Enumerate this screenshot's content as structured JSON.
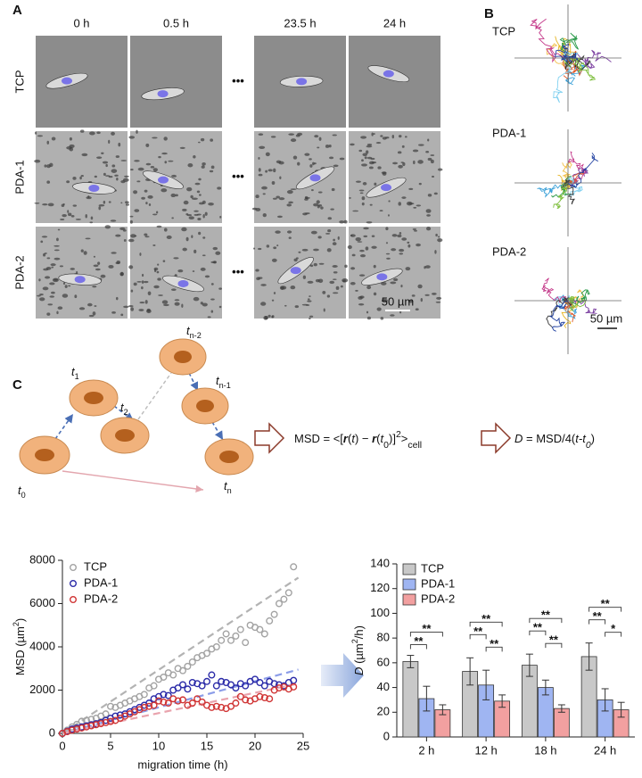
{
  "panel_a": {
    "label": "A",
    "columns": [
      "0 h",
      "0.5 h",
      "23.5 h",
      "24 h"
    ],
    "rows": [
      "TCP",
      "PDA-1",
      "PDA-2"
    ],
    "ellipsis": "•••",
    "scale_bar": "50 µm"
  },
  "panel_b": {
    "label": "B",
    "rows": [
      "TCP",
      "PDA-1",
      "PDA-2"
    ],
    "scale_bar": "50 µm"
  },
  "panel_c": {
    "label": "C",
    "time_points": [
      [
        {
          "text": "t",
          "style": "italic"
        },
        {
          "text": "0",
          "style": "sub"
        }
      ],
      [
        {
          "text": "t",
          "style": "italic"
        },
        {
          "text": "1",
          "style": "sub"
        }
      ],
      [
        {
          "text": "t",
          "style": "italic"
        },
        {
          "text": "2",
          "style": "sub"
        }
      ],
      [
        {
          "text": "t",
          "style": "italic"
        },
        {
          "text": "n-2",
          "style": "sub"
        }
      ],
      [
        {
          "text": "t",
          "style": "italic"
        },
        {
          "text": "n-1",
          "style": "sub"
        }
      ],
      [
        {
          "text": "t",
          "style": "italic"
        },
        {
          "text": "n",
          "style": "sub"
        }
      ]
    ],
    "msd_formula": [
      {
        "text": "MSD = <["
      },
      {
        "text": "r",
        "style": "bold italic"
      },
      {
        "text": "("
      },
      {
        "text": "t",
        "style": "italic"
      },
      {
        "text": ") − "
      },
      {
        "text": "r",
        "style": "bold italic"
      },
      {
        "text": "("
      },
      {
        "text": "t",
        "style": "italic"
      },
      {
        "text": "0",
        "style": "sub"
      },
      {
        "text": ")]"
      },
      {
        "text": "2",
        "style": "sup"
      },
      {
        "text": ">"
      },
      {
        "text": "cell",
        "style": "sub"
      }
    ],
    "d_formula": [
      {
        "text": "D",
        "style": "italic"
      },
      {
        "text": " = MSD/4("
      },
      {
        "text": "t-t",
        "style": "italic"
      },
      {
        "text": "0",
        "style": "italic sub"
      },
      {
        "text": ")"
      }
    ]
  },
  "chart_data": [
    {
      "type": "scatter",
      "x_label": "migration time (h)",
      "y_label": [
        {
          "text": "MSD (µm"
        },
        {
          "text": "2",
          "style": "sup"
        },
        {
          "text": ")"
        }
      ],
      "x": [
        0,
        0.5,
        1,
        1.5,
        2,
        2.5,
        3,
        3.5,
        4,
        4.5,
        5,
        5.5,
        6,
        6.5,
        7,
        7.5,
        8,
        8.5,
        9,
        9.5,
        10,
        10.5,
        11,
        11.5,
        12,
        12.5,
        13,
        13.5,
        14,
        14.5,
        15,
        15.5,
        16,
        16.5,
        17,
        17.5,
        18,
        18.5,
        19,
        19.5,
        20,
        20.5,
        21,
        21.5,
        22,
        22.5,
        23,
        23.5,
        24
      ],
      "series": [
        {
          "name": "TCP",
          "color": "#a3a3a3",
          "values": [
            0,
            150,
            300,
            420,
            560,
            600,
            650,
            700,
            800,
            900,
            1250,
            1200,
            1300,
            1400,
            1500,
            1600,
            1700,
            1800,
            2100,
            2200,
            2500,
            2600,
            2800,
            2700,
            3000,
            2900,
            3100,
            3300,
            3500,
            3600,
            3700,
            3900,
            4000,
            4300,
            4600,
            4300,
            4500,
            4800,
            4200,
            5000,
            4900,
            4800,
            4600,
            5200,
            5500,
            6000,
            6200,
            6500,
            7700
          ],
          "fit": {
            "x": [
              0,
              24.5
            ],
            "values": [
              0,
              7200
            ],
            "color": "#b3b3b3"
          }
        },
        {
          "name": "PDA-1",
          "color": "#2b2ba8",
          "values": [
            0,
            100,
            200,
            250,
            300,
            350,
            400,
            450,
            500,
            600,
            700,
            800,
            850,
            900,
            1000,
            1100,
            1200,
            1300,
            1400,
            1600,
            1700,
            1800,
            1750,
            2000,
            2100,
            2250,
            2050,
            2350,
            2300,
            2200,
            2400,
            2700,
            2200,
            2400,
            2350,
            2250,
            2100,
            2300,
            2200,
            2400,
            2500,
            2350,
            2200,
            2400,
            2300,
            2250,
            2200,
            2350,
            2450
          ],
          "fit": {
            "x": [
              0,
              24.5
            ],
            "values": [
              0,
              2950
            ],
            "color": "#8c9de8"
          }
        },
        {
          "name": "PDA-2",
          "color": "#d03535",
          "values": [
            0,
            80,
            150,
            200,
            250,
            300,
            350,
            400,
            450,
            500,
            550,
            600,
            700,
            800,
            900,
            1000,
            1100,
            1200,
            1250,
            1300,
            1500,
            1450,
            1400,
            1600,
            1500,
            1550,
            1300,
            1400,
            1600,
            1450,
            1300,
            1200,
            1250,
            1200,
            1150,
            1250,
            1400,
            1700,
            1550,
            1500,
            1600,
            1700,
            1650,
            1600,
            2000,
            2100,
            2150,
            2050,
            2150
          ],
          "fit": {
            "x": [
              0,
              24.5
            ],
            "values": [
              0,
              2300
            ],
            "color": "#e9a3ad"
          }
        }
      ],
      "xlim": [
        0,
        25
      ],
      "xticks": [
        0,
        5,
        10,
        15,
        20,
        25
      ],
      "ylim": [
        0,
        8000
      ],
      "yticks": [
        0,
        2000,
        4000,
        6000,
        8000
      ],
      "legend": "upper left"
    },
    {
      "type": "bar",
      "y_label": [
        {
          "text": "D",
          "style": "italic"
        },
        {
          "text": " (µm"
        },
        {
          "text": "2",
          "style": "sup"
        },
        {
          "text": "/h)"
        }
      ],
      "categories": [
        "2 h",
        "12 h",
        "18 h",
        "24 h"
      ],
      "series": [
        {
          "name": "TCP",
          "color": "#c8c8c8",
          "values": [
            61,
            53,
            58,
            65
          ],
          "errors": [
            5,
            11,
            9,
            11
          ]
        },
        {
          "name": "PDA-1",
          "color": "#9fb5f2",
          "values": [
            31,
            42,
            40,
            30
          ],
          "errors": [
            10,
            12,
            6,
            9
          ]
        },
        {
          "name": "PDA-2",
          "color": "#f2a0a0",
          "values": [
            22,
            29,
            23,
            22
          ],
          "errors": [
            4,
            5,
            3,
            6
          ]
        }
      ],
      "ylim": [
        0,
        140
      ],
      "yticks": [
        0,
        20,
        40,
        60,
        80,
        100,
        120,
        140
      ],
      "legend": "upper left",
      "significance": [
        {
          "category": 0,
          "pair": [
            0,
            1
          ],
          "label": "**"
        },
        {
          "category": 0,
          "pair": [
            0,
            2
          ],
          "label": "**"
        },
        {
          "category": 1,
          "pair": [
            1,
            2
          ],
          "label": "**"
        },
        {
          "category": 1,
          "pair": [
            0,
            1
          ],
          "label": "**"
        },
        {
          "category": 1,
          "pair": [
            0,
            2
          ],
          "label": "**"
        },
        {
          "category": 2,
          "pair": [
            1,
            2
          ],
          "label": "**"
        },
        {
          "category": 2,
          "pair": [
            0,
            1
          ],
          "label": "**"
        },
        {
          "category": 2,
          "pair": [
            0,
            2
          ],
          "label": "**"
        },
        {
          "category": 3,
          "pair": [
            1,
            2
          ],
          "label": "*"
        },
        {
          "category": 3,
          "pair": [
            0,
            1
          ],
          "label": "**"
        },
        {
          "category": 3,
          "pair": [
            0,
            2
          ],
          "label": "**"
        }
      ]
    }
  ]
}
